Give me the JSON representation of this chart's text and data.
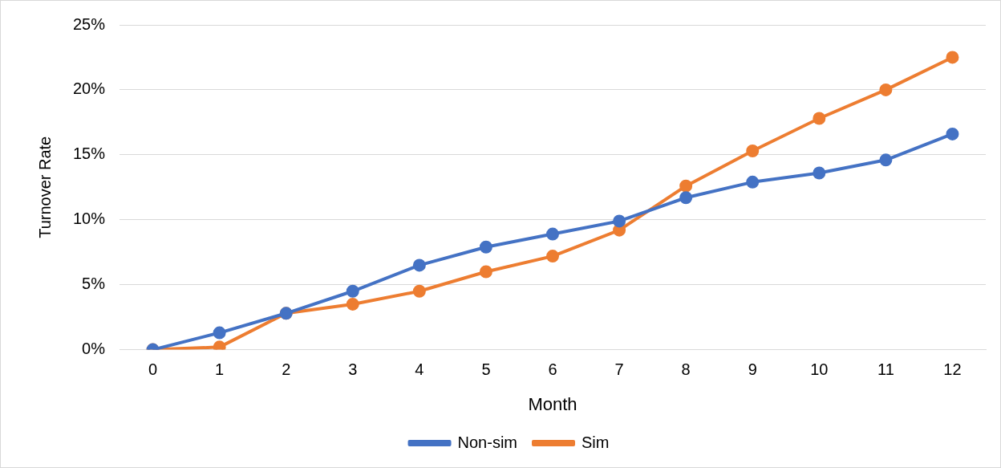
{
  "chart_data": {
    "type": "line",
    "xlabel": "Month",
    "ylabel": "Turnover Rate",
    "x": [
      0,
      1,
      2,
      3,
      4,
      5,
      6,
      7,
      8,
      9,
      10,
      11,
      12
    ],
    "xlim": [
      -0.5,
      12.5
    ],
    "xticks": [
      0,
      1,
      2,
      3,
      4,
      5,
      6,
      7,
      8,
      9,
      10,
      11,
      12
    ],
    "series": [
      {
        "name": "Non-sim",
        "color": "#4472c4",
        "values": [
          0,
          1.3,
          2.8,
          4.5,
          6.5,
          7.9,
          8.9,
          9.9,
          11.7,
          12.9,
          13.6,
          14.6,
          16.6
        ]
      },
      {
        "name": "Sim",
        "color": "#ed7d31",
        "values": [
          0,
          0.2,
          2.8,
          3.5,
          4.5,
          6.0,
          7.2,
          9.2,
          12.6,
          15.3,
          17.8,
          20.0,
          22.5
        ]
      }
    ],
    "ylim": [
      0,
      25
    ],
    "yticks": [
      {
        "value": 0,
        "label": "0%"
      },
      {
        "value": 5,
        "label": "5%"
      },
      {
        "value": 10,
        "label": "10%"
      },
      {
        "value": 15,
        "label": "15%"
      },
      {
        "value": 20,
        "label": "20%"
      },
      {
        "value": 25,
        "label": "25%"
      }
    ],
    "grid": "y",
    "legend": "bottom",
    "marker": "circle",
    "line_style": "solid"
  }
}
